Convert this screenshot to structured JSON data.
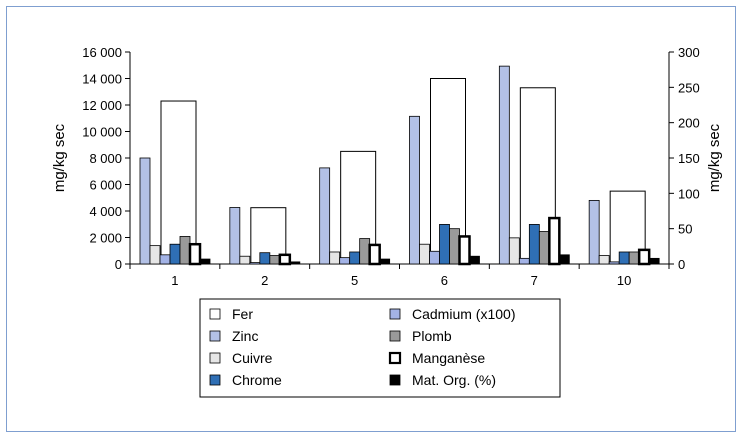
{
  "chart_data": {
    "type": "bar",
    "categories": [
      "1",
      "2",
      "5",
      "6",
      "7",
      "10"
    ],
    "ylabel_left": "mg/kg sec",
    "ylabel_right": "mg/kg sec",
    "ylim_left": [
      0,
      16000
    ],
    "ylim_right": [
      0,
      300
    ],
    "yticks_left": [
      "0",
      "2 000",
      "4 000",
      "6 000",
      "8 000",
      "10 000",
      "12 000",
      "14 000",
      "16 000"
    ],
    "yticks_right": [
      "0",
      "50",
      "100",
      "150",
      "200",
      "250",
      "300"
    ],
    "grid": false,
    "legend_position": "bottom",
    "series": [
      {
        "name": "Fer",
        "axis": "left",
        "order": 0,
        "color": "#ffffff",
        "stroke": "#000000",
        "values": [
          12300,
          4250,
          8500,
          14000,
          13300,
          5500
        ]
      },
      {
        "name": "Zinc",
        "axis": "right",
        "order": 0,
        "color": "#b3c1e6",
        "stroke": "#000000",
        "values": [
          150,
          80,
          136,
          209,
          280,
          90
        ]
      },
      {
        "name": "Cuivre",
        "axis": "right",
        "order": 1,
        "color": "#e6e6e6",
        "stroke": "#000000",
        "values": [
          26,
          11,
          17,
          28,
          37,
          12
        ]
      },
      {
        "name": "Cadmium (x100)",
        "axis": "right",
        "order": 2,
        "color": "#a3b3e6",
        "stroke": "#000000",
        "values": [
          13,
          2,
          9,
          18,
          8,
          3
        ]
      },
      {
        "name": "Chrome",
        "axis": "right",
        "order": 3,
        "color": "#2f6fb5",
        "stroke": "#000000",
        "values": [
          28,
          16,
          17,
          56,
          56,
          17
        ]
      },
      {
        "name": "Plomb",
        "axis": "right",
        "order": 4,
        "color": "#9a9a9a",
        "stroke": "#000000",
        "values": [
          39,
          12,
          36,
          50,
          46,
          17
        ]
      },
      {
        "name": "Manganèse",
        "axis": "right",
        "order": 5,
        "color": "#ffffff",
        "stroke": "#000000",
        "strokeWidth": 2.5,
        "values": [
          28,
          13,
          27,
          39,
          65,
          20
        ]
      },
      {
        "name": "Mat. Org. (%)",
        "axis": "right",
        "order": 6,
        "color": "#000000",
        "stroke": "#000000",
        "values": [
          7,
          3,
          7,
          11,
          13,
          8
        ]
      }
    ],
    "legend_columns": [
      [
        "Fer",
        "Zinc",
        "Cuivre",
        "Chrome"
      ],
      [
        "Cadmium (x100)",
        "Plomb",
        "Manganèse",
        "Mat. Org. (%)"
      ]
    ]
  }
}
